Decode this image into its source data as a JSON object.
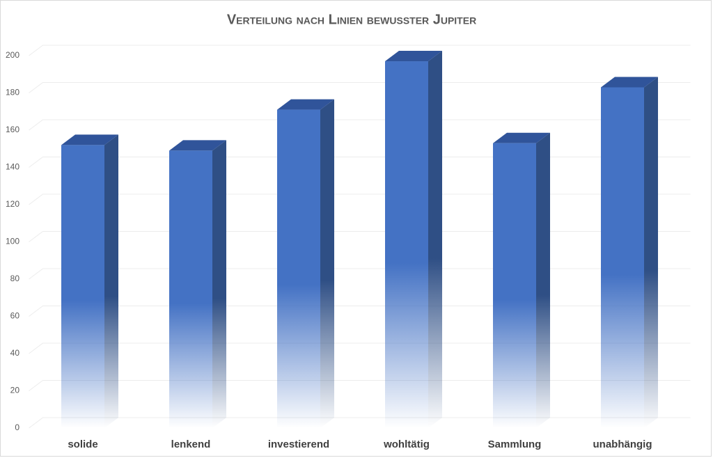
{
  "chart_data": {
    "type": "bar3d",
    "title": "Verteilung nach Linien bewusster Jupiter",
    "categories": [
      "solide",
      "lenkend",
      "investierend",
      "wohltätig",
      "Sammlung",
      "unabhängig"
    ],
    "values": [
      152,
      149,
      171,
      197,
      153,
      183
    ],
    "color": "#4472c4",
    "ylim": [
      0,
      200
    ],
    "yticks": [
      0,
      20,
      40,
      60,
      80,
      100,
      120,
      140,
      160,
      180,
      200
    ],
    "grid": true
  }
}
